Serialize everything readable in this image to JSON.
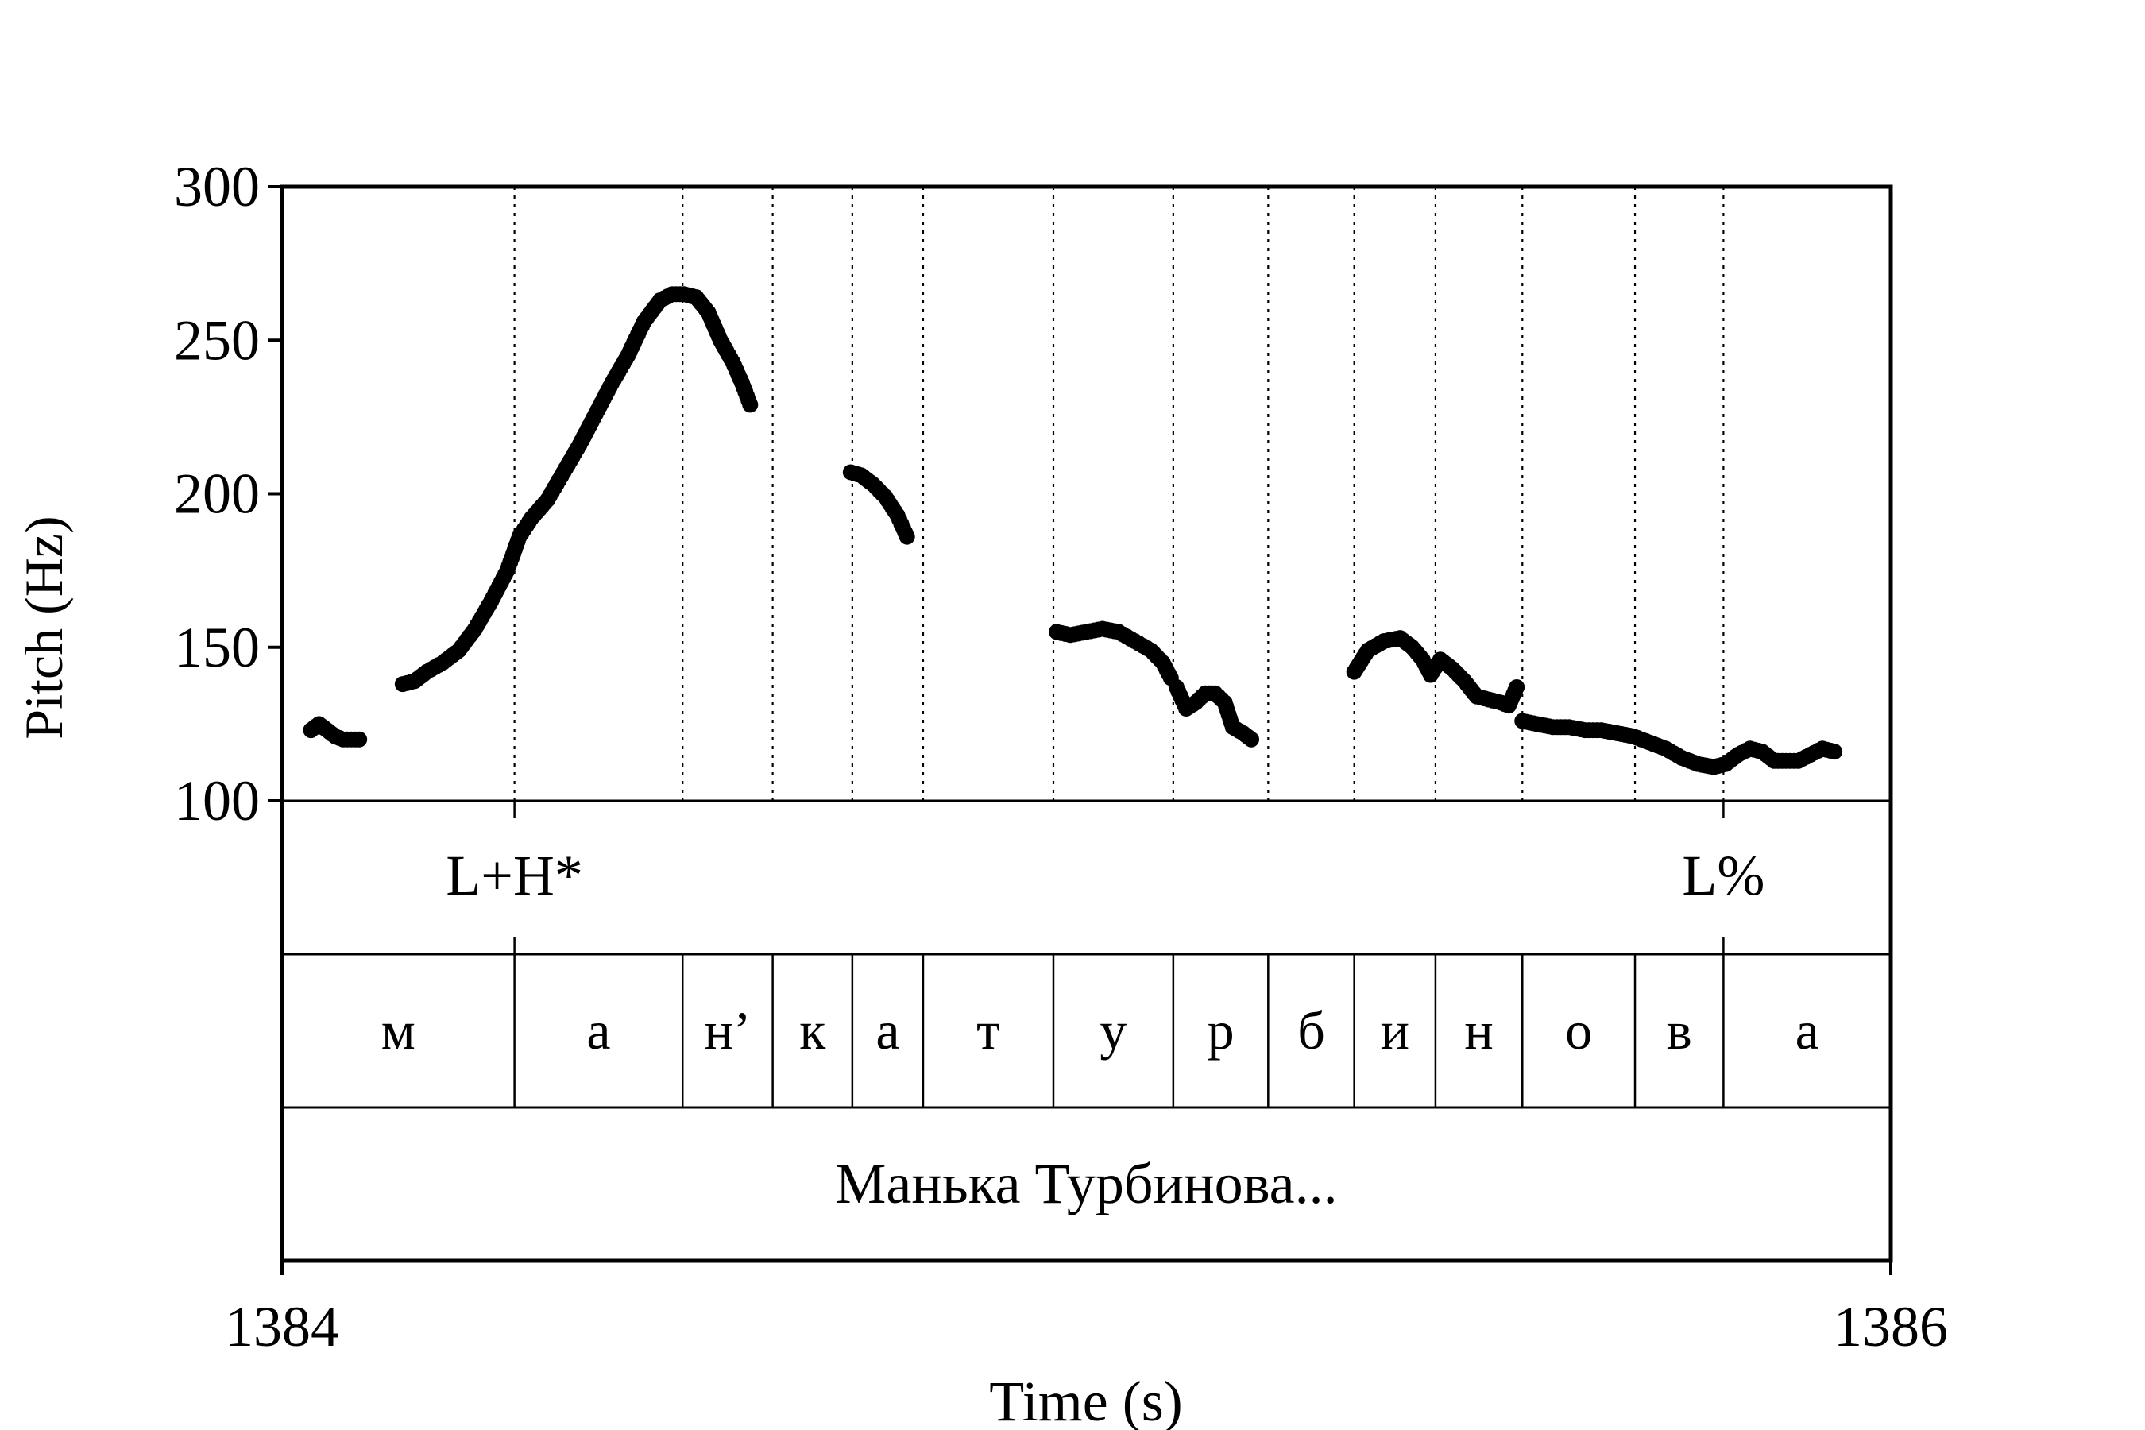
{
  "chart_data": {
    "type": "line",
    "title": "",
    "xlabel": "Time (s)",
    "ylabel": "Pitch (Hz)",
    "xlim": [
      1384,
      1386
    ],
    "ylim": [
      100,
      300
    ],
    "x_ticks": [
      "1384",
      "1386"
    ],
    "y_ticks": [
      "100",
      "150",
      "200",
      "250",
      "300"
    ],
    "grid": false,
    "boundaries": [
      1384.289,
      1384.498,
      1384.61,
      1384.709,
      1384.797,
      1384.959,
      1385.108,
      1385.226,
      1385.333,
      1385.434,
      1385.542,
      1385.682,
      1385.792
    ],
    "tones": [
      {
        "label": "L+H*",
        "x": 1384.289
      },
      {
        "label": "L%",
        "x": 1385.792
      }
    ],
    "segments": [
      {
        "label": "м",
        "start": 1384.0,
        "end": 1384.289
      },
      {
        "label": "а",
        "start": 1384.289,
        "end": 1384.498
      },
      {
        "label": "н’",
        "start": 1384.498,
        "end": 1384.61
      },
      {
        "label": "к",
        "start": 1384.61,
        "end": 1384.709
      },
      {
        "label": "а",
        "start": 1384.709,
        "end": 1384.797
      },
      {
        "label": "т",
        "start": 1384.797,
        "end": 1384.959
      },
      {
        "label": "у",
        "start": 1384.959,
        "end": 1385.108
      },
      {
        "label": "р",
        "start": 1385.108,
        "end": 1385.226
      },
      {
        "label": "б",
        "start": 1385.226,
        "end": 1385.333
      },
      {
        "label": "и",
        "start": 1385.333,
        "end": 1385.434
      },
      {
        "label": "н",
        "start": 1385.434,
        "end": 1385.542
      },
      {
        "label": "о",
        "start": 1385.542,
        "end": 1385.682
      },
      {
        "label": "в",
        "start": 1385.682,
        "end": 1385.792
      },
      {
        "label": "а",
        "start": 1385.792,
        "end": 1386.0
      }
    ],
    "words": [
      {
        "label": "Манька Турбинова...",
        "start": 1384.0,
        "end": 1386.0
      }
    ],
    "series": [
      {
        "name": "",
        "contours": [
          [
            [
              1384.036,
              123
            ],
            [
              1384.046,
              125
            ],
            [
              1384.056,
              123
            ],
            [
              1384.066,
              121
            ],
            [
              1384.076,
              120
            ],
            [
              1384.086,
              120
            ],
            [
              1384.096,
              120
            ]
          ],
          [
            [
              1384.15,
              138
            ],
            [
              1384.165,
              139
            ],
            [
              1384.18,
              142
            ],
            [
              1384.2,
              145
            ],
            [
              1384.22,
              149
            ],
            [
              1384.24,
              156
            ],
            [
              1384.26,
              165
            ],
            [
              1384.28,
              175
            ],
            [
              1384.295,
              186
            ],
            [
              1384.31,
              192
            ],
            [
              1384.33,
              198
            ],
            [
              1384.35,
              207
            ],
            [
              1384.37,
              216
            ],
            [
              1384.39,
              226
            ],
            [
              1384.41,
              236
            ],
            [
              1384.43,
              245
            ],
            [
              1384.45,
              256
            ],
            [
              1384.47,
              263
            ],
            [
              1384.485,
              265
            ],
            [
              1384.5,
              265
            ],
            [
              1384.515,
              264
            ],
            [
              1384.53,
              259
            ],
            [
              1384.545,
              250
            ],
            [
              1384.56,
              243
            ],
            [
              1384.572,
              236
            ],
            [
              1384.582,
              229
            ]
          ],
          [
            [
              1384.707,
              207
            ],
            [
              1384.72,
              206
            ],
            [
              1384.735,
              203
            ],
            [
              1384.75,
              199
            ],
            [
              1384.765,
              193
            ],
            [
              1384.777,
              186
            ]
          ],
          [
            [
              1384.963,
              155
            ],
            [
              1384.98,
              154
            ],
            [
              1385.0,
              155
            ],
            [
              1385.02,
              156
            ],
            [
              1385.04,
              155
            ],
            [
              1385.06,
              152
            ],
            [
              1385.08,
              149
            ],
            [
              1385.095,
              145
            ],
            [
              1385.105,
              140
            ]
          ],
          [
            [
              1385.112,
              137
            ],
            [
              1385.124,
              130
            ],
            [
              1385.136,
              132
            ],
            [
              1385.148,
              135
            ],
            [
              1385.16,
              135
            ],
            [
              1385.172,
              132
            ],
            [
              1385.182,
              124
            ],
            [
              1385.195,
              122
            ],
            [
              1385.205,
              120
            ]
          ],
          [
            [
              1385.333,
              142
            ],
            [
              1385.35,
              149
            ],
            [
              1385.37,
              152
            ],
            [
              1385.39,
              153
            ],
            [
              1385.405,
              150
            ],
            [
              1385.418,
              146
            ],
            [
              1385.428,
              141
            ],
            [
              1385.44,
              146
            ],
            [
              1385.455,
              143
            ],
            [
              1385.47,
              139
            ],
            [
              1385.485,
              134
            ],
            [
              1385.5,
              133
            ],
            [
              1385.515,
              132
            ],
            [
              1385.525,
              131
            ],
            [
              1385.535,
              137
            ]
          ],
          [
            [
              1385.542,
              126
            ],
            [
              1385.56,
              125
            ],
            [
              1385.58,
              124
            ],
            [
              1385.6,
              124
            ],
            [
              1385.62,
              123
            ],
            [
              1385.64,
              123
            ],
            [
              1385.66,
              122
            ],
            [
              1385.68,
              121
            ],
            [
              1385.7,
              119
            ],
            [
              1385.72,
              117
            ],
            [
              1385.74,
              114
            ],
            [
              1385.76,
              112
            ],
            [
              1385.78,
              111
            ],
            [
              1385.795,
              112
            ],
            [
              1385.81,
              115
            ],
            [
              1385.825,
              117
            ],
            [
              1385.84,
              116
            ],
            [
              1385.855,
              113
            ],
            [
              1385.87,
              113
            ],
            [
              1385.885,
              113
            ],
            [
              1385.9,
              115
            ],
            [
              1385.915,
              117
            ],
            [
              1385.93,
              116
            ]
          ]
        ]
      }
    ]
  }
}
